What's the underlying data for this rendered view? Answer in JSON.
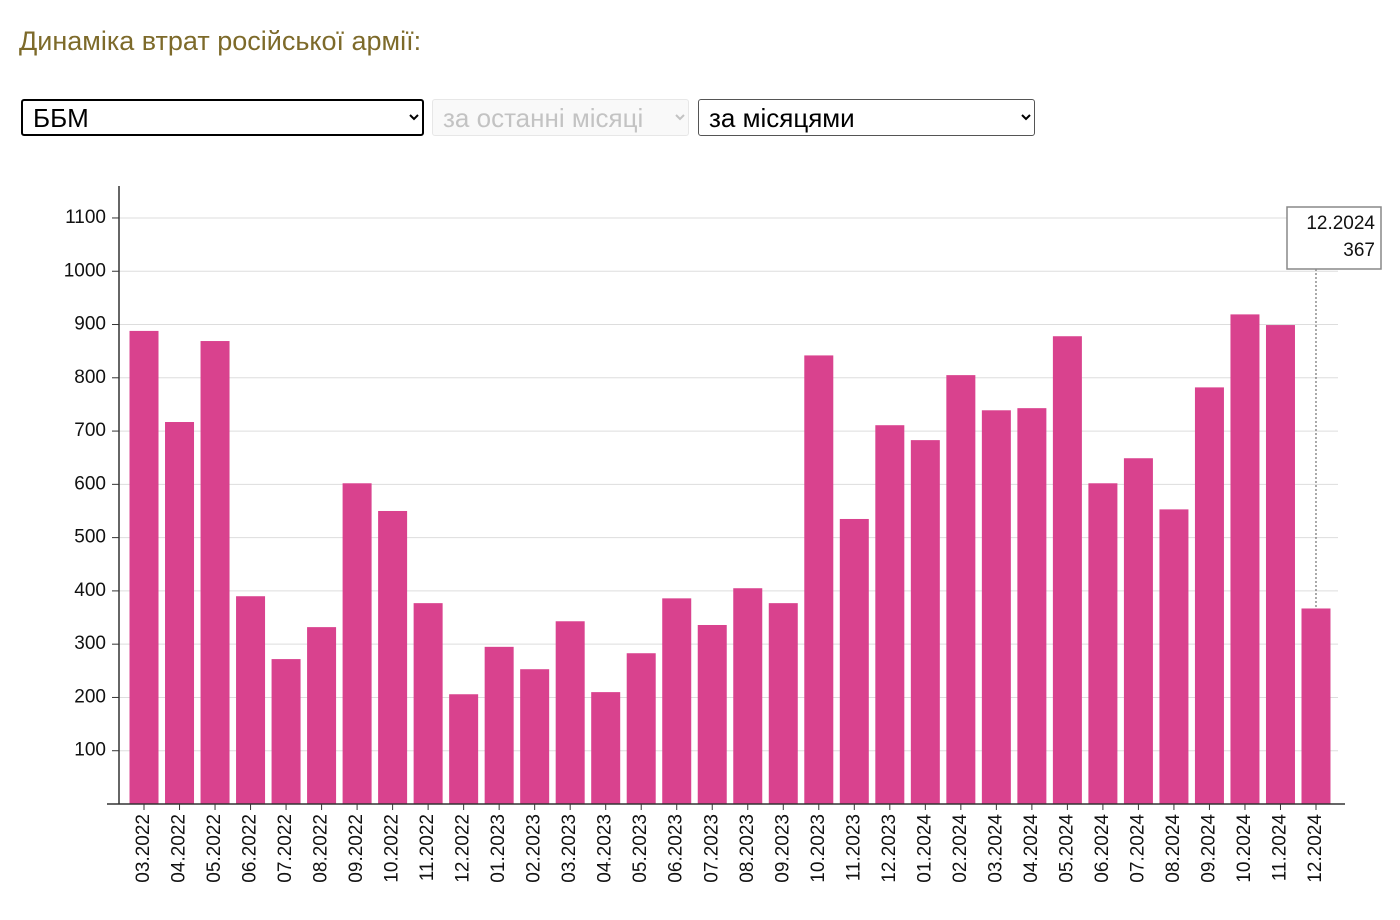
{
  "header": {
    "title": "Динаміка втрат російської армії:"
  },
  "controls": {
    "category": "ББМ",
    "period": "за останні місяці",
    "grouping": "за місяцями"
  },
  "chart_data": {
    "type": "bar",
    "color": "#d9428e",
    "grid": true,
    "categories": [
      "03.2022",
      "04.2022",
      "05.2022",
      "06.2022",
      "07.2022",
      "08.2022",
      "09.2022",
      "10.2022",
      "11.2022",
      "12.2022",
      "01.2023",
      "02.2023",
      "03.2023",
      "04.2023",
      "05.2023",
      "06.2023",
      "07.2023",
      "08.2023",
      "09.2023",
      "10.2023",
      "11.2023",
      "12.2023",
      "01.2024",
      "02.2024",
      "03.2024",
      "04.2024",
      "05.2024",
      "06.2024",
      "07.2024",
      "08.2024",
      "09.2024",
      "10.2024",
      "11.2024",
      "12.2024"
    ],
    "values": [
      888,
      717,
      869,
      390,
      272,
      332,
      602,
      550,
      377,
      206,
      295,
      253,
      343,
      210,
      283,
      386,
      336,
      405,
      377,
      842,
      535,
      711,
      683,
      805,
      739,
      743,
      878,
      602,
      649,
      553,
      782,
      919,
      899,
      367
    ],
    "ylim": [
      0,
      1160
    ],
    "yticks": [
      100,
      200,
      300,
      400,
      500,
      600,
      700,
      800,
      900,
      1000,
      1100
    ]
  }
}
